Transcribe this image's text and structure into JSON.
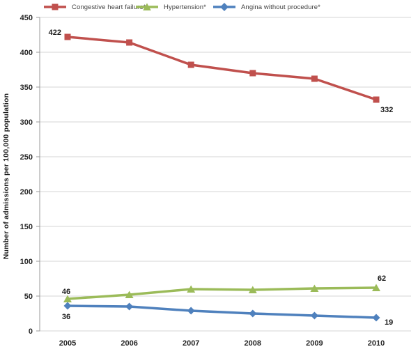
{
  "chart_data": {
    "type": "line",
    "title": "",
    "xlabel": "",
    "ylabel": "Number of admissions per 100,000 population",
    "x_categories": [
      "2005",
      "2006",
      "2007",
      "2008",
      "2009",
      "2010"
    ],
    "yticks": [
      0,
      50,
      100,
      150,
      200,
      250,
      300,
      350,
      400,
      450
    ],
    "ylim": [
      0,
      450
    ],
    "grid": true,
    "legend_position": "top",
    "series": [
      {
        "name": "Congestive heart failure*",
        "color": "#C0504D",
        "marker": "square",
        "values": [
          422,
          414,
          382,
          370,
          362,
          332
        ],
        "endpoint_labels": {
          "first": "422",
          "last": "332"
        }
      },
      {
        "name": "Hypertension*",
        "color": "#9BBB59",
        "marker": "triangle",
        "values": [
          46,
          52,
          60,
          59,
          61,
          62
        ],
        "endpoint_labels": {
          "first": "46",
          "last": "62"
        }
      },
      {
        "name": "Angina without procedure*",
        "color": "#4F81BD",
        "marker": "diamond",
        "values": [
          36,
          35,
          29,
          25,
          22,
          19
        ],
        "endpoint_labels": {
          "first": "36",
          "last": "19"
        }
      }
    ],
    "colors": {
      "gridline": "#d6d6d6",
      "axis": "#9a9a9a",
      "tick_text": "#262626"
    }
  }
}
